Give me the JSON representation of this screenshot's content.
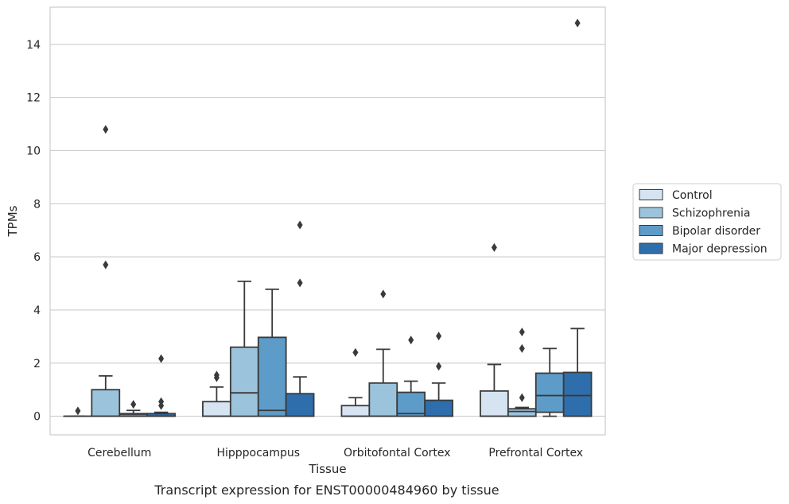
{
  "chart_data": {
    "type": "box",
    "caption": "Transcript expression for ENST00000484960 by tissue",
    "xlabel": "Tissue",
    "ylabel": "TPMs",
    "ylim": [
      -0.7,
      15.4
    ],
    "yticks": [
      0,
      2,
      4,
      6,
      8,
      10,
      12,
      14
    ],
    "grid": "horizontal",
    "legend_position": "right",
    "categories": [
      "Cerebellum",
      "Hipppocampus",
      "Orbitofontal Cortex",
      "Prefrontal Cortex"
    ],
    "series": [
      {
        "name": "Control",
        "color": "#d6e4f2",
        "boxes": [
          {
            "q1": 0,
            "median": 0,
            "q3": 0,
            "whisker_low": 0,
            "whisker_high": 0,
            "outliers": [
              0.2
            ]
          },
          {
            "q1": 0,
            "median": 0,
            "q3": 0.55,
            "whisker_low": 0,
            "whisker_high": 1.1,
            "outliers": [
              1.45,
              1.55
            ]
          },
          {
            "q1": 0,
            "median": 0,
            "q3": 0.4,
            "whisker_low": 0,
            "whisker_high": 0.7,
            "outliers": [
              2.4
            ]
          },
          {
            "q1": 0,
            "median": 0,
            "q3": 0.95,
            "whisker_low": 0,
            "whisker_high": 1.95,
            "outliers": [
              6.35
            ]
          }
        ]
      },
      {
        "name": "Schizophrenia",
        "color": "#9cc3dc",
        "boxes": [
          {
            "q1": 0,
            "median": 0,
            "q3": 1.0,
            "whisker_low": 0,
            "whisker_high": 1.52,
            "outliers": [
              5.7,
              10.8
            ]
          },
          {
            "q1": 0,
            "median": 0.88,
            "q3": 2.6,
            "whisker_low": 0,
            "whisker_high": 5.08,
            "outliers": []
          },
          {
            "q1": 0,
            "median": 0,
            "q3": 1.25,
            "whisker_low": 0,
            "whisker_high": 2.52,
            "outliers": [
              4.6
            ]
          },
          {
            "q1": 0,
            "median": 0.18,
            "q3": 0.28,
            "whisker_low": 0,
            "whisker_high": 0.33,
            "outliers": [
              0.7,
              2.55,
              3.17
            ]
          }
        ]
      },
      {
        "name": "Bipolar disorder",
        "color": "#5d9cc8",
        "boxes": [
          {
            "q1": 0,
            "median": 0.08,
            "q3": 0.1,
            "whisker_low": 0,
            "whisker_high": 0.22,
            "outliers": [
              0.45
            ]
          },
          {
            "q1": 0,
            "median": 0.22,
            "q3": 2.97,
            "whisker_low": 0,
            "whisker_high": 4.78,
            "outliers": []
          },
          {
            "q1": 0,
            "median": 0.1,
            "q3": 0.9,
            "whisker_low": 0,
            "whisker_high": 1.32,
            "outliers": [
              2.87
            ]
          },
          {
            "q1": 0.15,
            "median": 0.78,
            "q3": 1.62,
            "whisker_low": 0,
            "whisker_high": 2.55,
            "outliers": []
          }
        ]
      },
      {
        "name": "Major depression",
        "color": "#2f6eac",
        "boxes": [
          {
            "q1": 0,
            "median": 0,
            "q3": 0.1,
            "whisker_low": 0,
            "whisker_high": 0.15,
            "outliers": [
              0.4,
              0.55,
              2.17
            ]
          },
          {
            "q1": 0,
            "median": 0,
            "q3": 0.85,
            "whisker_low": 0,
            "whisker_high": 1.48,
            "outliers": [
              5.02,
              7.2
            ]
          },
          {
            "q1": 0,
            "median": 0,
            "q3": 0.6,
            "whisker_low": 0,
            "whisker_high": 1.25,
            "outliers": [
              1.88,
              3.02
            ]
          },
          {
            "q1": 0,
            "median": 0.78,
            "q3": 1.65,
            "whisker_low": 0,
            "whisker_high": 3.3,
            "outliers": [
              14.8
            ]
          }
        ]
      }
    ]
  }
}
